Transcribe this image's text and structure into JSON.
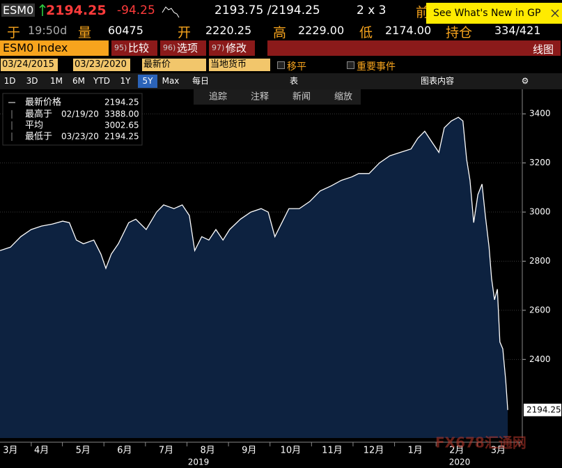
{
  "header": {
    "ticker": "ESM0",
    "last": "2194.25",
    "change": "-94.25",
    "bid_ask": "2193.75 /2194.25",
    "size": "2 x 3",
    "prev_label": "前",
    "promo": "See What's New in GP"
  },
  "quote_fields": [
    {
      "label": "于",
      "value": "19:50d"
    },
    {
      "label": "量",
      "value": "60475"
    },
    {
      "label": "开",
      "value": "2220.25"
    },
    {
      "label": "高",
      "value": "2229.00"
    },
    {
      "label": "低",
      "value": "2174.00"
    },
    {
      "label": "持仓",
      "value": "334/421"
    }
  ],
  "menu": {
    "security": "ESM0 Index",
    "items": [
      {
        "num": "95)",
        "label": "比较"
      },
      {
        "num": "96)",
        "label": "选项"
      },
      {
        "num": "97)",
        "label": "修改"
      }
    ],
    "view": "线图"
  },
  "controls": {
    "start": "03/24/2015",
    "end": "03/23/2020",
    "field": "最新价",
    "currency": "当地货币",
    "smooth": "移平",
    "events": "重要事件"
  },
  "periods": [
    "1D",
    "3D",
    "1M",
    "6M",
    "YTD",
    "1Y",
    "5Y",
    "Max"
  ],
  "active_period": "5Y",
  "frequency": "每日",
  "table": "表",
  "chart_content": "图表内容",
  "tools": [
    "追踪",
    "注释",
    "新闻",
    "缩放"
  ],
  "chart_data": {
    "type": "line",
    "series": [
      {
        "name": "最新价格",
        "color": "#ffffff",
        "fill": "#0d2240",
        "values": [
          2843,
          2857,
          2900,
          2929,
          2943,
          2951,
          2963,
          2957,
          2886,
          2871,
          2886,
          2829,
          2771,
          2829,
          2871,
          2957,
          2971,
          2929,
          3000,
          3029,
          3014,
          3029,
          2986,
          2843,
          2900,
          2886,
          2929,
          2886,
          2929,
          2971,
          3000,
          3014,
          3000,
          2900,
          2957,
          3014,
          3014,
          3043,
          3086,
          3106,
          3129,
          3143,
          3157,
          3157,
          3200,
          3229,
          3243,
          3257,
          3300,
          3329,
          3286,
          3243,
          3343,
          3371,
          3386,
          3371,
          3214,
          3129,
          2957,
          3071,
          3114,
          2986,
          2857,
          2729,
          2643,
          2686,
          2471,
          2443,
          2314,
          2194.25
        ]
      }
    ],
    "x": [
      -0.5,
      -0.25,
      0,
      0.25,
      0.5,
      0.76,
      1.01,
      1.17,
      1.34,
      1.51,
      1.76,
      1.93,
      2.05,
      2.18,
      2.35,
      2.6,
      2.77,
      3.02,
      3.27,
      3.44,
      3.69,
      3.89,
      4.06,
      4.19,
      4.36,
      4.53,
      4.7,
      4.87,
      5.03,
      5.29,
      5.54,
      5.79,
      5.96,
      6.12,
      6.29,
      6.46,
      6.71,
      6.96,
      7.21,
      7.47,
      7.72,
      7.97,
      8.14,
      8.39,
      8.64,
      8.89,
      9.14,
      9.4,
      9.56,
      9.73,
      9.9,
      10.07,
      10.2,
      10.37,
      10.54,
      10.65,
      10.74,
      10.82,
      10.91,
      11.01,
      11.11,
      11.19,
      11.28,
      11.34,
      11.41,
      11.48,
      11.54,
      11.61,
      11.68,
      11.73
    ],
    "xlim": [
      -0.5,
      12.08
    ],
    "ylim": [
      2080,
      3500
    ],
    "yticks": [
      2400,
      2600,
      2800,
      3000,
      3200,
      3400
    ],
    "xticks": [
      {
        "value": -0.25,
        "label": "3月"
      },
      {
        "value": 0.5,
        "label": "4月"
      },
      {
        "value": 1.5,
        "label": "5月"
      },
      {
        "value": 2.5,
        "label": "6月"
      },
      {
        "value": 3.5,
        "label": "7月"
      },
      {
        "value": 4.5,
        "label": "8月"
      },
      {
        "value": 5.5,
        "label": "9月"
      },
      {
        "value": 6.5,
        "label": "10月"
      },
      {
        "value": 7.5,
        "label": "11月"
      },
      {
        "value": 8.5,
        "label": "12月"
      },
      {
        "value": 9.5,
        "label": "1月"
      },
      {
        "value": 10.5,
        "label": "2月"
      },
      {
        "value": 11.5,
        "label": "3月"
      }
    ],
    "year_ticks": [
      {
        "value": 4.28,
        "label": "2019"
      },
      {
        "value": 10.57,
        "label": "2020"
      }
    ],
    "grid": true,
    "stats": [
      {
        "label": "最高于",
        "date": "02/19/20",
        "value": "3388.00"
      },
      {
        "label": "平均",
        "date": null,
        "value": "3002.65"
      },
      {
        "label": "最低于",
        "date": "03/23/20",
        "value": "2194.25"
      }
    ],
    "watermark": "FX678汇通网"
  }
}
